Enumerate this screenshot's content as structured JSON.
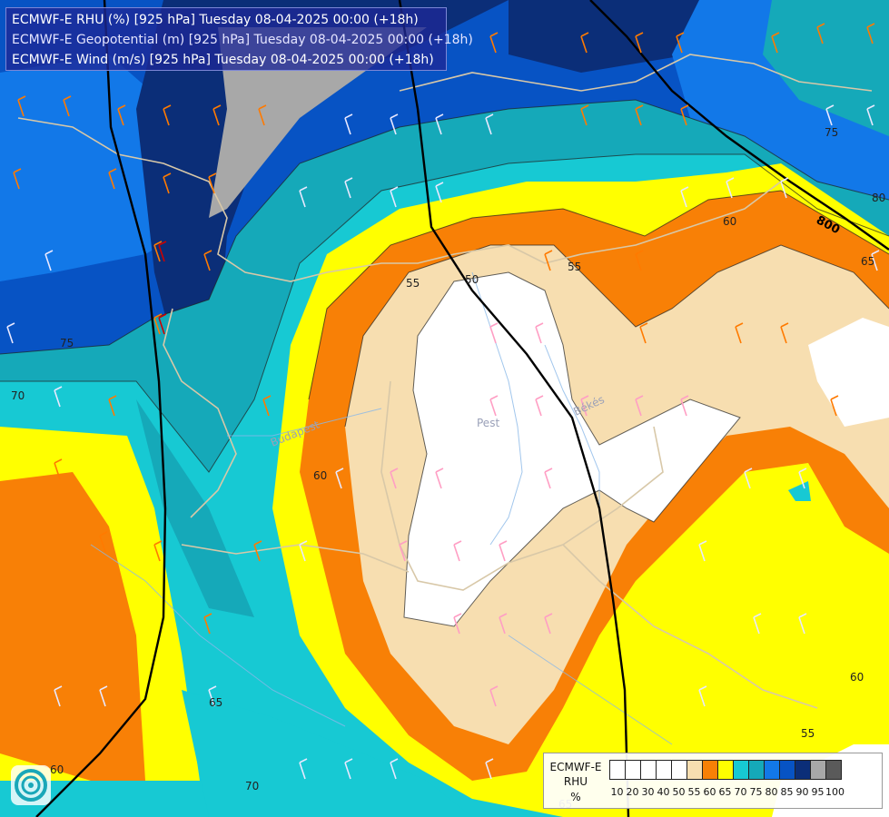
{
  "header": {
    "line1": "ECMWF-E RHU (%) [925 hPa] Tuesday 08-04-2025 00:00 (+18h)",
    "line2": "ECMWF-E Geopotential (m) [925 hPa] Tuesday 08-04-2025 00:00 (+18h)",
    "line3": "ECMWF-E Wind (m/s) [925 hPa] Tuesday 08-04-2025 00:00 (+18h)"
  },
  "colors": {
    "c100": "#ffffff",
    "c55": "#f7deb0",
    "c60": "#f88006",
    "c65": "#ffff00",
    "c70": "#17c9d3",
    "c75": "#15a9b9",
    "c80": "#1278e8",
    "c85": "#0753c4",
    "c90": "#0b2e78",
    "c95": "#a8a8a8"
  },
  "contour_labels": [
    {
      "text": "55"
    },
    {
      "text": "55"
    },
    {
      "text": "60"
    },
    {
      "text": "60"
    },
    {
      "text": "60"
    },
    {
      "text": "60"
    },
    {
      "text": "65"
    },
    {
      "text": "65"
    },
    {
      "text": "65"
    },
    {
      "text": "70"
    },
    {
      "text": "70"
    },
    {
      "text": "75"
    },
    {
      "text": "75"
    },
    {
      "text": "80"
    },
    {
      "text": "50"
    },
    {
      "text": "55"
    }
  ],
  "geo_label": "800",
  "places": [
    "Pest",
    "Békés",
    "Budapest"
  ],
  "legend": {
    "title": "ECMWF-E",
    "var": "RHU",
    "unit": "%",
    "swatches": [
      "#ffffff",
      "#ffffff",
      "#ffffff",
      "#ffffff",
      "#ffffff",
      "#f7deb0",
      "#f88006",
      "#ffff00",
      "#17c9d3",
      "#15a9b9",
      "#1278e8",
      "#0753c4",
      "#0b2e78",
      "#a8a8a8",
      "#5a5a5a"
    ],
    "ticks": [
      "10",
      "20",
      "30",
      "40",
      "50",
      "55",
      "60",
      "65",
      "70",
      "75",
      "80",
      "85",
      "90",
      "95",
      "100"
    ]
  }
}
